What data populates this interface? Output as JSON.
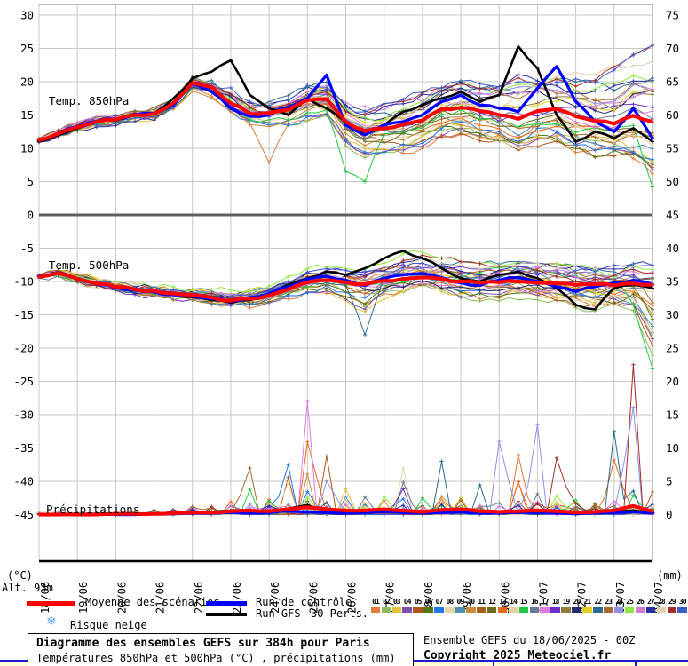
{
  "chart_data": {
    "type": "line",
    "title": "Diagramme des ensembles GEFS sur 384h pour Paris",
    "subtitle": "Températures 850hPa et 500hPa (°C) , précipitations (mm)",
    "grid": true,
    "legend_position": "bottom",
    "time_step_hours": 12,
    "x_tick_labels": [
      "18/06",
      "19/06",
      "20/06",
      "21/06",
      "22/06",
      "23/06",
      "24/06",
      "25/06",
      "26/06",
      "27/06",
      "28/06",
      "29/06",
      "30/06",
      "01/07",
      "02/07",
      "03/07",
      "04/07"
    ],
    "left_axis": {
      "unit": "(°C)",
      "min": -45,
      "max": 30,
      "step": 5,
      "ticks": [
        30,
        25,
        20,
        15,
        10,
        5,
        0,
        -5,
        -10,
        -15,
        -20,
        -25,
        -30,
        -35,
        -40,
        -45
      ]
    },
    "right_axis": {
      "unit": "(mm)",
      "min": 0,
      "max": 75,
      "step": 5,
      "ticks": [
        75,
        70,
        65,
        60,
        55,
        50,
        45,
        40,
        35,
        30,
        25,
        20,
        15,
        10,
        5,
        0
      ]
    },
    "panels": [
      {
        "id": "t850",
        "label": "Temp. 850hPa",
        "series": [
          {
            "name": "Moyenne des scénarios",
            "color": "#ff0000",
            "values": [
              11.2,
              12.2,
              13.2,
              14.0,
              14.3,
              15.0,
              15.2,
              16.8,
              19.8,
              19.2,
              16.8,
              15.2,
              15.3,
              15.8,
              17.2,
              17.4,
              14.0,
              12.6,
              13.0,
              13.6,
              14.2,
              15.9,
              16.1,
              15.6,
              15.0,
              14.4,
              15.6,
              15.9,
              14.8,
              14.1,
              13.7,
              14.9,
              14.0
            ]
          },
          {
            "name": "Run de contrôle",
            "color": "#0000ff",
            "values": [
              11.2,
              12.3,
              13.3,
              14.1,
              14.4,
              15.1,
              15.3,
              16.5,
              19.8,
              18.5,
              16.0,
              14.8,
              15.0,
              16.2,
              17.5,
              21.0,
              13.5,
              12.0,
              13.5,
              14.0,
              15.0,
              17.0,
              18.0,
              16.5,
              16.0,
              15.5,
              19.0,
              22.3,
              17.0,
              14.0,
              12.5,
              16.0,
              11.5
            ]
          },
          {
            "name": "Run GFS",
            "color": "#000000",
            "values": [
              11.0,
              12.0,
              13.0,
              14.0,
              14.2,
              15.0,
              15.3,
              17.5,
              20.5,
              21.5,
              23.2,
              18.0,
              16.0,
              15.0,
              17.5,
              16.0,
              14.0,
              12.0,
              13.5,
              15.5,
              16.5,
              17.5,
              18.5,
              17.0,
              18.0,
              25.3,
              22.0,
              15.0,
              11.0,
              12.5,
              11.5,
              13.0,
              11.0
            ]
          }
        ],
        "envelope": {
          "min": [
            10.6,
            11.4,
            12.4,
            13.2,
            13.4,
            14.0,
            14.2,
            14.8,
            18.0,
            17.0,
            13.5,
            12.0,
            11.0,
            11.5,
            12.0,
            12.5,
            7.5,
            5.0,
            5.5,
            6.0,
            8.0,
            9.0,
            9.5,
            9.0,
            8.5,
            7.5,
            8.0,
            8.5,
            7.5,
            7.0,
            6.5,
            5.5,
            4.0
          ],
          "max": [
            11.8,
            13.0,
            14.0,
            14.8,
            15.2,
            15.8,
            16.2,
            18.0,
            21.0,
            21.5,
            23.3,
            19.5,
            18.5,
            19.0,
            21.0,
            21.5,
            20.0,
            19.5,
            20.0,
            20.5,
            21.5,
            22.5,
            23.0,
            22.5,
            23.0,
            25.5,
            24.0,
            23.5,
            23.0,
            22.5,
            23.5,
            24.5,
            25.5
          ]
        },
        "forced_member_points": [
          {
            "m": 15,
            "t": 16,
            "v": 6.5
          },
          {
            "m": 15,
            "t": 17,
            "v": 5.0
          },
          {
            "m": 15,
            "t": 32,
            "v": 4.2
          },
          {
            "m": 1,
            "t": 12,
            "v": 7.8
          }
        ]
      },
      {
        "id": "t500",
        "label": "Temp. 500hPa",
        "series": [
          {
            "name": "Moyenne des scénarios",
            "color": "#ff0000",
            "values": [
              -9.3,
              -8.7,
              -9.6,
              -10.3,
              -10.8,
              -11.2,
              -11.4,
              -11.8,
              -12.0,
              -12.4,
              -12.9,
              -12.6,
              -12.1,
              -11.2,
              -10.1,
              -9.8,
              -10.1,
              -10.4,
              -9.9,
              -9.6,
              -9.4,
              -9.6,
              -10.0,
              -10.2,
              -10.1,
              -10.0,
              -10.2,
              -10.3,
              -10.5,
              -10.4,
              -10.6,
              -10.3,
              -10.5
            ]
          },
          {
            "name": "Run de contrôle",
            "color": "#0000ff",
            "values": [
              -9.2,
              -8.6,
              -9.7,
              -10.4,
              -10.9,
              -11.3,
              -11.6,
              -12.0,
              -12.2,
              -12.6,
              -13.0,
              -12.4,
              -11.8,
              -10.8,
              -9.6,
              -9.2,
              -9.8,
              -10.6,
              -9.5,
              -9.0,
              -8.8,
              -9.4,
              -10.2,
              -10.6,
              -9.8,
              -9.4,
              -10.0,
              -10.8,
              -11.5,
              -10.8,
              -10.2,
              -9.8,
              -10.4
            ]
          },
          {
            "name": "Run GFS",
            "color": "#000000",
            "values": [
              -9.3,
              -8.7,
              -9.6,
              -10.4,
              -10.9,
              -11.3,
              -11.5,
              -12.0,
              -12.3,
              -12.8,
              -13.2,
              -12.8,
              -12.0,
              -10.5,
              -9.5,
              -8.5,
              -9.0,
              -8.0,
              -6.5,
              -5.4,
              -6.5,
              -8.0,
              -9.5,
              -10.0,
              -9.0,
              -8.5,
              -9.5,
              -11.0,
              -13.5,
              -14.2,
              -11.0,
              -10.5,
              -11.0
            ]
          }
        ],
        "envelope": {
          "min": [
            -10.0,
            -9.5,
            -10.3,
            -11.0,
            -11.5,
            -12.0,
            -12.3,
            -12.8,
            -13.3,
            -13.8,
            -14.6,
            -14.8,
            -14.5,
            -13.5,
            -12.5,
            -12.0,
            -14.0,
            -18.0,
            -13.0,
            -12.5,
            -12.0,
            -12.3,
            -12.8,
            -13.0,
            -13.0,
            -12.8,
            -13.0,
            -13.2,
            -14.0,
            -14.5,
            -13.5,
            -14.5,
            -23.0
          ],
          "max": [
            -8.8,
            -8.3,
            -8.9,
            -9.5,
            -10.0,
            -10.3,
            -10.5,
            -10.8,
            -10.8,
            -11.0,
            -11.0,
            -10.5,
            -10.0,
            -9.0,
            -8.0,
            -7.8,
            -8.0,
            -8.2,
            -7.2,
            -5.8,
            -5.6,
            -6.5,
            -7.0,
            -7.2,
            -7.3,
            -7.0,
            -7.2,
            -7.3,
            -7.5,
            -8.0,
            -7.5,
            -7.3,
            -7.5
          ]
        },
        "forced_member_points": [
          {
            "m": 15,
            "t": 31,
            "v": -13.5
          },
          {
            "m": 15,
            "t": 32,
            "v": -23.0
          },
          {
            "m": 22,
            "t": 17,
            "v": -18.0
          }
        ]
      },
      {
        "id": "precip",
        "label": "Précipitations",
        "series": [
          {
            "name": "Moyenne des scénarios",
            "color": "#ff0000",
            "values": [
              0.0,
              0.0,
              0.0,
              0.0,
              0.1,
              0.1,
              0.1,
              0.2,
              0.3,
              0.3,
              0.5,
              0.6,
              0.5,
              0.8,
              1.1,
              0.8,
              0.6,
              0.6,
              0.8,
              0.6,
              0.4,
              0.7,
              0.8,
              0.5,
              0.4,
              0.5,
              0.6,
              0.5,
              0.3,
              0.4,
              0.6,
              1.3,
              0.5
            ]
          },
          {
            "name": "Run de contrôle",
            "color": "#0000ff",
            "values": [
              0,
              0,
              0,
              0,
              0,
              0,
              0.1,
              0.1,
              0.2,
              0.2,
              0.3,
              0.2,
              0.3,
              0.5,
              0.4,
              0.3,
              0.2,
              0.3,
              0.4,
              0.3,
              0.2,
              0.3,
              0.4,
              0.2,
              0.2,
              0.3,
              0.3,
              0.2,
              0.1,
              0.2,
              0.3,
              0.4,
              0.2
            ]
          },
          {
            "name": "Run GFS",
            "color": "#000000",
            "values": [
              0,
              0,
              0,
              0,
              0,
              0,
              0.1,
              0.2,
              0.3,
              0.4,
              0.6,
              0.4,
              0.5,
              0.9,
              1.4,
              0.6,
              0.4,
              0.5,
              0.6,
              0.4,
              0.3,
              0.5,
              0.6,
              0.3,
              0.3,
              0.4,
              0.5,
              0.3,
              0.2,
              0.3,
              0.4,
              0.6,
              0.3
            ]
          }
        ],
        "envelope_max": [
          0.2,
          0.2,
          0.2,
          0.3,
          0.3,
          0.5,
          1.0,
          1.5,
          2.0,
          2.5,
          3.5,
          7.0,
          4.0,
          8.0,
          17.0,
          9.0,
          7.0,
          5.0,
          5.5,
          7.0,
          5.0,
          8.0,
          5.0,
          6.5,
          11.0,
          9.0,
          13.5,
          8.5,
          4.5,
          5.0,
          12.5,
          22.5,
          6.0
        ],
        "forced_member_points": [
          {
            "m": 17,
            "t": 14,
            "v": 17.0
          },
          {
            "m": 29,
            "t": 27,
            "v": 8.5
          },
          {
            "m": 29,
            "t": 31,
            "v": 22.5
          },
          {
            "m": 24,
            "t": 24,
            "v": 11.0
          },
          {
            "m": 24,
            "t": 26,
            "v": 13.5
          },
          {
            "m": 22,
            "t": 21,
            "v": 8.0
          },
          {
            "m": 22,
            "t": 30,
            "v": 12.5
          },
          {
            "m": 1,
            "t": 25,
            "v": 9.0
          },
          {
            "m": 23,
            "t": 11,
            "v": 7.0
          },
          {
            "m": 7,
            "t": 13,
            "v": 7.5
          },
          {
            "m": 11,
            "t": 15,
            "v": 8.8
          },
          {
            "m": 8,
            "t": 19,
            "v": 7.0
          }
        ]
      }
    ]
  },
  "panel_labels": {
    "t850": "Temp. 850hPa",
    "t500": "Temp. 500hPa",
    "precip": "Précipitations"
  },
  "axis_annotations": {
    "left_unit": "(°C)",
    "right_unit": "(mm)",
    "alt": "Alt. 93m"
  },
  "legend": {
    "mean_label": "Moyenne des scénarios",
    "control_label": "Run de contrôle",
    "gfs_label": "Run GFS",
    "perts_label": "30 Perts.",
    "snow_label": "Risque neige",
    "snow_icon": "❄",
    "member_numbers": [
      "01",
      "02",
      "03",
      "04",
      "05",
      "06",
      "07",
      "08",
      "09",
      "10",
      "11",
      "12",
      "13",
      "14",
      "15",
      "16",
      "17",
      "18",
      "19",
      "20",
      "21",
      "22",
      "23",
      "24",
      "25",
      "26",
      "27",
      "28",
      "29",
      "30"
    ],
    "member_colors": [
      "#e07b39",
      "#8fbc5a",
      "#e3c23b",
      "#7b52ab",
      "#b4561b",
      "#567714",
      "#1f77e8",
      "#e4d5a8",
      "#4e8fb4",
      "#c98a3b",
      "#a65e1a",
      "#6b6b1f",
      "#e8661f",
      "#e8d0a0",
      "#1fc93f",
      "#6b7b8f",
      "#e07be0",
      "#6b2fc9",
      "#8f7b3b",
      "#2b2b6b",
      "#e3cf1f",
      "#2b6b8f",
      "#a66b2f",
      "#8f8fe8",
      "#8fe83f",
      "#cf7bcf",
      "#2b2ba6",
      "#e0d0b0",
      "#a62b2b",
      "#3b5bc9"
    ]
  },
  "footer": {
    "title": "Diagramme des ensembles GEFS sur 384h pour Paris",
    "subtitle": "Températures 850hPa et 500hPa (°C) , précipitations (mm)",
    "run_info": "Ensemble GEFS du 18/06/2025 - 00Z",
    "copyright": "Copyright 2025 Meteociel.fr"
  },
  "colors": {
    "mean": "#ff0000",
    "control": "#0000ff",
    "gfs": "#000000",
    "grid": "#c9c9c9",
    "zero_line": "#5f5f5f",
    "border": "#9a9a9a",
    "axis": "#000000"
  }
}
